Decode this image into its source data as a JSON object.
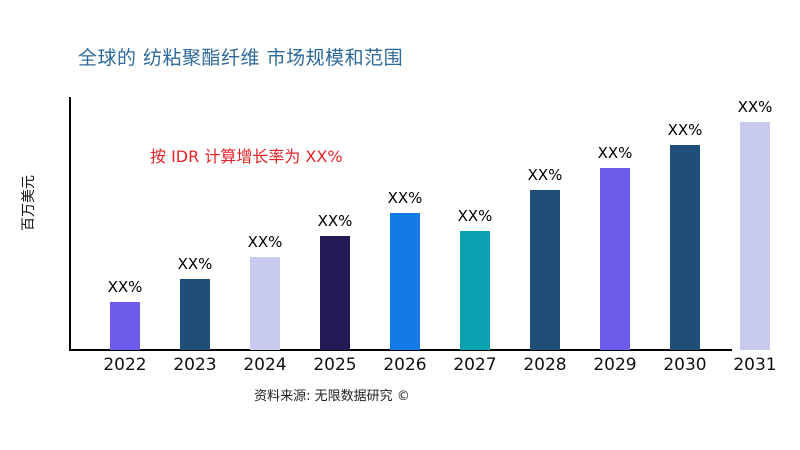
{
  "header": {
    "title": "全球的 纺粘聚酯纤维 市场规模和范围",
    "title_color": "#2f6a9d"
  },
  "annotation": {
    "text": "按 IDR 计算增长率为 XX%",
    "color": "#e52328"
  },
  "footer": {
    "source_text": "资料来源: 无限数据研究 ©"
  },
  "chart_data": {
    "type": "bar",
    "title": "全球的 纺粘聚酯纤维 市场规模和范围",
    "xlabel": "",
    "ylabel": "百万美元",
    "categories": [
      "2022",
      "2023",
      "2024",
      "2025",
      "2026",
      "2027",
      "2028",
      "2029",
      "2030",
      "2031"
    ],
    "values": [
      21,
      31,
      41,
      50,
      60,
      52,
      70,
      80,
      90,
      100
    ],
    "values_note": "y-axis has no numeric ticks; values estimated from relative bar heights (tallest bar = 100)",
    "bar_labels": [
      "XX%",
      "XX%",
      "XX%",
      "XX%",
      "XX%",
      "XX%",
      "XX%",
      "XX%",
      "XX%",
      "XX%"
    ],
    "bar_colors": [
      "#6d5cec",
      "#1f4e78",
      "#c8cbee",
      "#211a55",
      "#137ae8",
      "#0aa2b0",
      "#1f4e78",
      "#6d5cec",
      "#1f4e78",
      "#c8cbee"
    ],
    "ylim": [
      0,
      111
    ],
    "grid": false,
    "legend": null,
    "annotation": "按 IDR 计算增长率为 XX%"
  }
}
